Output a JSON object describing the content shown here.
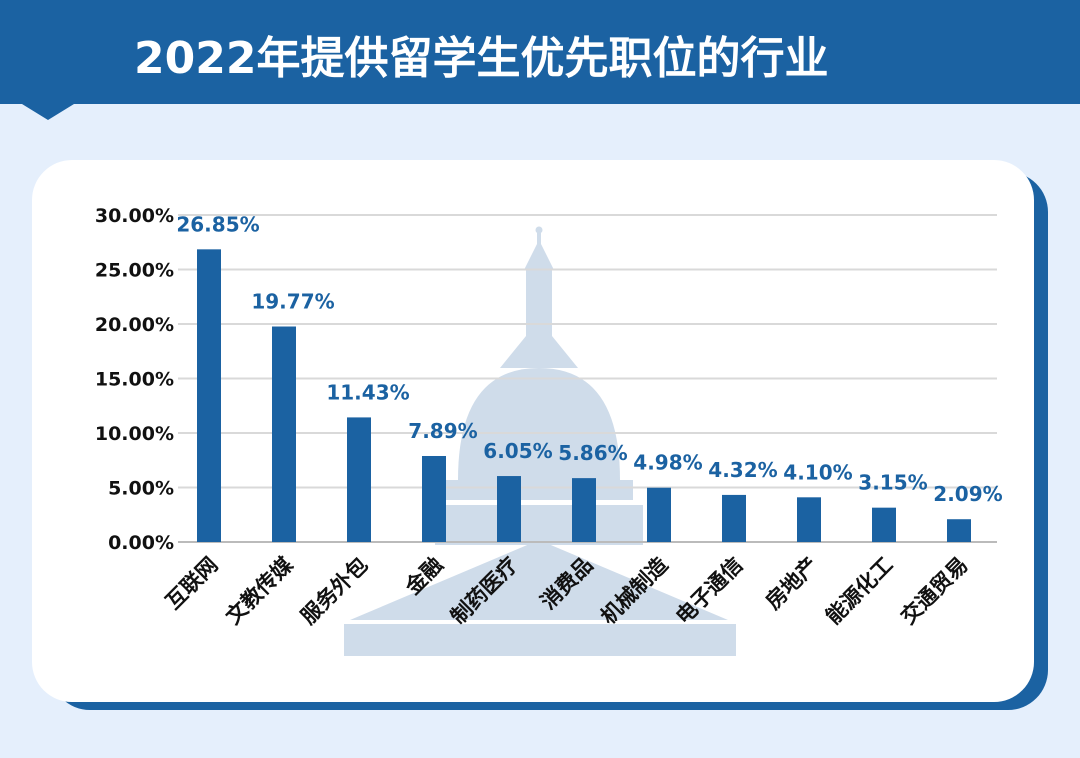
{
  "header": {
    "title": "2022年提供留学生优先职位的行业"
  },
  "colors": {
    "bar": "#1b62a2",
    "label": "#1b62a2",
    "header": "#1b62a2",
    "background": "#e5effc",
    "watermark": "#cfdcea"
  },
  "chart_data": {
    "type": "bar",
    "title": "2022年提供留学生优先职位的行业",
    "categories": [
      "互联网",
      "文教传媒",
      "服务外包",
      "金融",
      "制药医疗",
      "消费品",
      "机械制造",
      "电子通信",
      "房地产",
      "能源化工",
      "交通贸易"
    ],
    "values": [
      26.85,
      19.77,
      11.43,
      7.89,
      6.05,
      5.86,
      4.98,
      4.32,
      4.1,
      3.15,
      2.09
    ],
    "data_labels": [
      "26.85%",
      "19.77%",
      "11.43%",
      "7.89%",
      "6.05%",
      "5.86%",
      "4.98%",
      "4.32%",
      "4.10%",
      "3.15%",
      "2.09%"
    ],
    "yticks": [
      "0.00%",
      "5.00%",
      "10.00%",
      "15.00%",
      "20.00%",
      "25.00%",
      "30.00%"
    ],
    "ylim": [
      0,
      30
    ],
    "grid": true,
    "xlabel": "",
    "ylabel": ""
  }
}
